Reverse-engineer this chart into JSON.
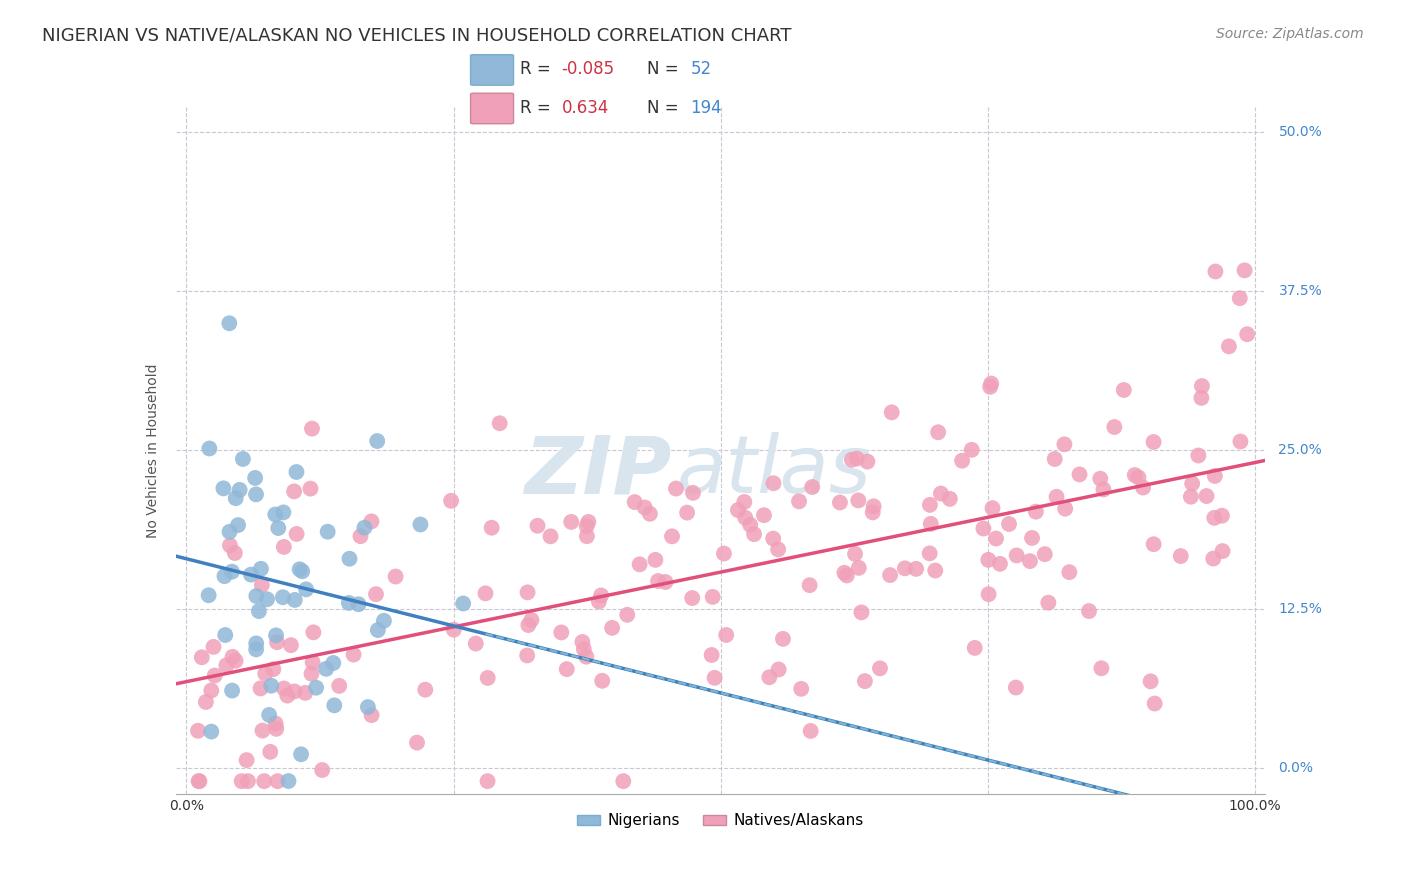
{
  "title": "NIGERIAN VS NATIVE/ALASKAN NO VEHICLES IN HOUSEHOLD CORRELATION CHART",
  "source": "Source: ZipAtlas.com",
  "ylabel": "No Vehicles in Household",
  "ytick_labels": [
    "0.0%",
    "12.5%",
    "25.0%",
    "37.5%",
    "50.0%"
  ],
  "ytick_values": [
    0.0,
    0.125,
    0.25,
    0.375,
    0.5
  ],
  "xtick_values": [
    0.0,
    0.25,
    0.5,
    0.75,
    1.0
  ],
  "xtick_labels": [
    "0.0%",
    "",
    "",
    "",
    "100.0%"
  ],
  "nigerian_R": -0.085,
  "nigerian_N": 52,
  "native_R": 0.634,
  "native_N": 194,
  "scatter_color_nigerian": "#90b8d8",
  "scatter_color_native": "#f0a0b8",
  "line_color_nigerian": "#4080c0",
  "line_color_native": "#e0507a",
  "dashed_color": "#80b8d0",
  "watermark_zip": "ZIP",
  "watermark_atlas": "atlas",
  "watermark_color": "#d8e4ee",
  "background_color": "#ffffff",
  "grid_color": "#c8c8d8",
  "ylim": [
    -0.02,
    0.52
  ],
  "xlim": [
    -0.01,
    1.01
  ],
  "title_fontsize": 13,
  "axis_label_fontsize": 10,
  "tick_fontsize": 10,
  "legend_fontsize": 11,
  "source_fontsize": 10
}
